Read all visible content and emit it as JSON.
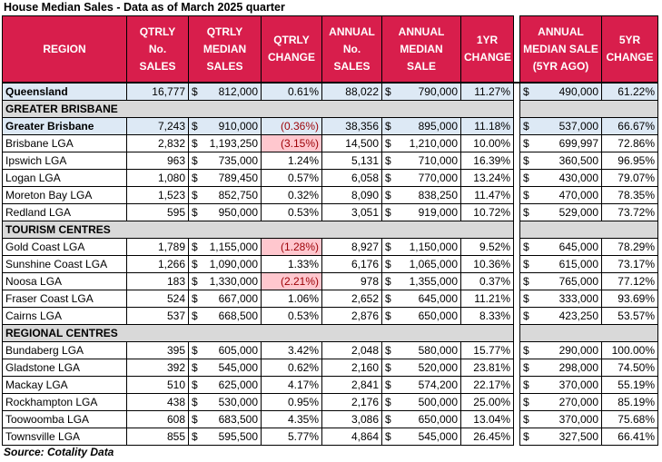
{
  "title": "House Median Sales - Data as of March 2025 quarter",
  "table": {
    "headers": [
      "REGION",
      "QTRLY\nNo.\nSALES",
      "QTRLY\nMEDIAN\nSALES",
      "QTRLY\nCHANGE",
      "ANNUAL\nNo.\nSALES",
      "ANNUAL\nMEDIAN\nSALE",
      "1YR\nCHANGE",
      "ANNUAL\nMEDIAN SALE\n(5YR AGO)",
      "5YR\nCHANGE"
    ],
    "total_row": [
      "Queensland",
      "16,777",
      "$ 812,000",
      "0.61%",
      "88,022",
      "$ 790,000",
      "11.27%",
      "$ 490,000",
      "61.22%"
    ],
    "sections": [
      {
        "label": "GREATER BRISBANE",
        "summary_row": [
          "Greater Brisbane",
          "7,243",
          "$ 910,000",
          "(0.36%)",
          "38,356",
          "$ 895,000",
          "11.18%",
          "$ 537,000",
          "66.67%"
        ],
        "rows": [
          [
            "Brisbane LGA",
            "2,832",
            "$ 1,193,250",
            "(3.15%)",
            "14,500",
            "$ 1,210,000",
            "10.00%",
            "$ 699,997",
            "72.86%"
          ],
          [
            "Ipswich LGA",
            "963",
            "$ 735,000",
            "1.24%",
            "5,131",
            "$ 710,000",
            "16.39%",
            "$ 360,500",
            "96.95%"
          ],
          [
            "Logan LGA",
            "1,080",
            "$ 789,450",
            "0.57%",
            "6,058",
            "$ 770,000",
            "13.24%",
            "$ 430,000",
            "79.07%"
          ],
          [
            "Moreton Bay LGA",
            "1,523",
            "$ 852,750",
            "0.32%",
            "8,090",
            "$ 838,250",
            "11.47%",
            "$ 470,000",
            "78.35%"
          ],
          [
            "Redland LGA",
            "595",
            "$ 950,000",
            "0.53%",
            "3,051",
            "$ 919,000",
            "10.72%",
            "$ 529,000",
            "73.72%"
          ]
        ]
      },
      {
        "label": "TOURISM CENTRES",
        "rows": [
          [
            "Gold Coast LGA",
            "1,789",
            "$ 1,155,000",
            "(1.28%)",
            "8,927",
            "$ 1,150,000",
            "9.52%",
            "$ 645,000",
            "78.29%"
          ],
          [
            "Sunshine Coast LGA",
            "1,266",
            "$ 1,090,000",
            "1.33%",
            "6,176",
            "$ 1,065,000",
            "10.36%",
            "$ 615,000",
            "73.17%"
          ],
          [
            "Noosa LGA",
            "183",
            "$ 1,330,000",
            "(2.21%)",
            "978",
            "$ 1,355,000",
            "0.37%",
            "$ 765,000",
            "77.12%"
          ],
          [
            "Fraser Coast LGA",
            "524",
            "$ 667,000",
            "1.06%",
            "2,652",
            "$ 645,000",
            "11.21%",
            "$ 333,000",
            "93.69%"
          ],
          [
            "Cairns LGA",
            "537",
            "$ 668,500",
            "0.53%",
            "2,876",
            "$ 650,000",
            "8.33%",
            "$ 423,250",
            "53.57%"
          ]
        ]
      },
      {
        "label": "REGIONAL CENTRES",
        "rows": [
          [
            "Bundaberg LGA",
            "395",
            "$ 605,000",
            "3.42%",
            "2,048",
            "$ 580,000",
            "15.77%",
            "$ 290,000",
            "100.00%"
          ],
          [
            "Gladstone LGA",
            "392",
            "$ 545,000",
            "0.62%",
            "2,160",
            "$ 520,000",
            "23.81%",
            "$ 298,000",
            "74.50%"
          ],
          [
            "Mackay LGA",
            "510",
            "$ 625,000",
            "4.17%",
            "2,841",
            "$ 574,200",
            "22.17%",
            "$ 370,000",
            "55.19%"
          ],
          [
            "Rockhampton LGA",
            "438",
            "$ 530,000",
            "0.95%",
            "2,176",
            "$ 500,000",
            "25.00%",
            "$ 270,000",
            "85.19%"
          ],
          [
            "Toowoomba LGA",
            "608",
            "$ 683,500",
            "4.35%",
            "3,086",
            "$ 650,000",
            "13.04%",
            "$ 370,000",
            "75.68%"
          ],
          [
            "Townsville LGA",
            "855",
            "$ 595,500",
            "5.77%",
            "4,864",
            "$ 545,000",
            "26.45%",
            "$ 327,500",
            "66.41%"
          ]
        ]
      }
    ]
  },
  "source": "Source: Cotality Data"
}
